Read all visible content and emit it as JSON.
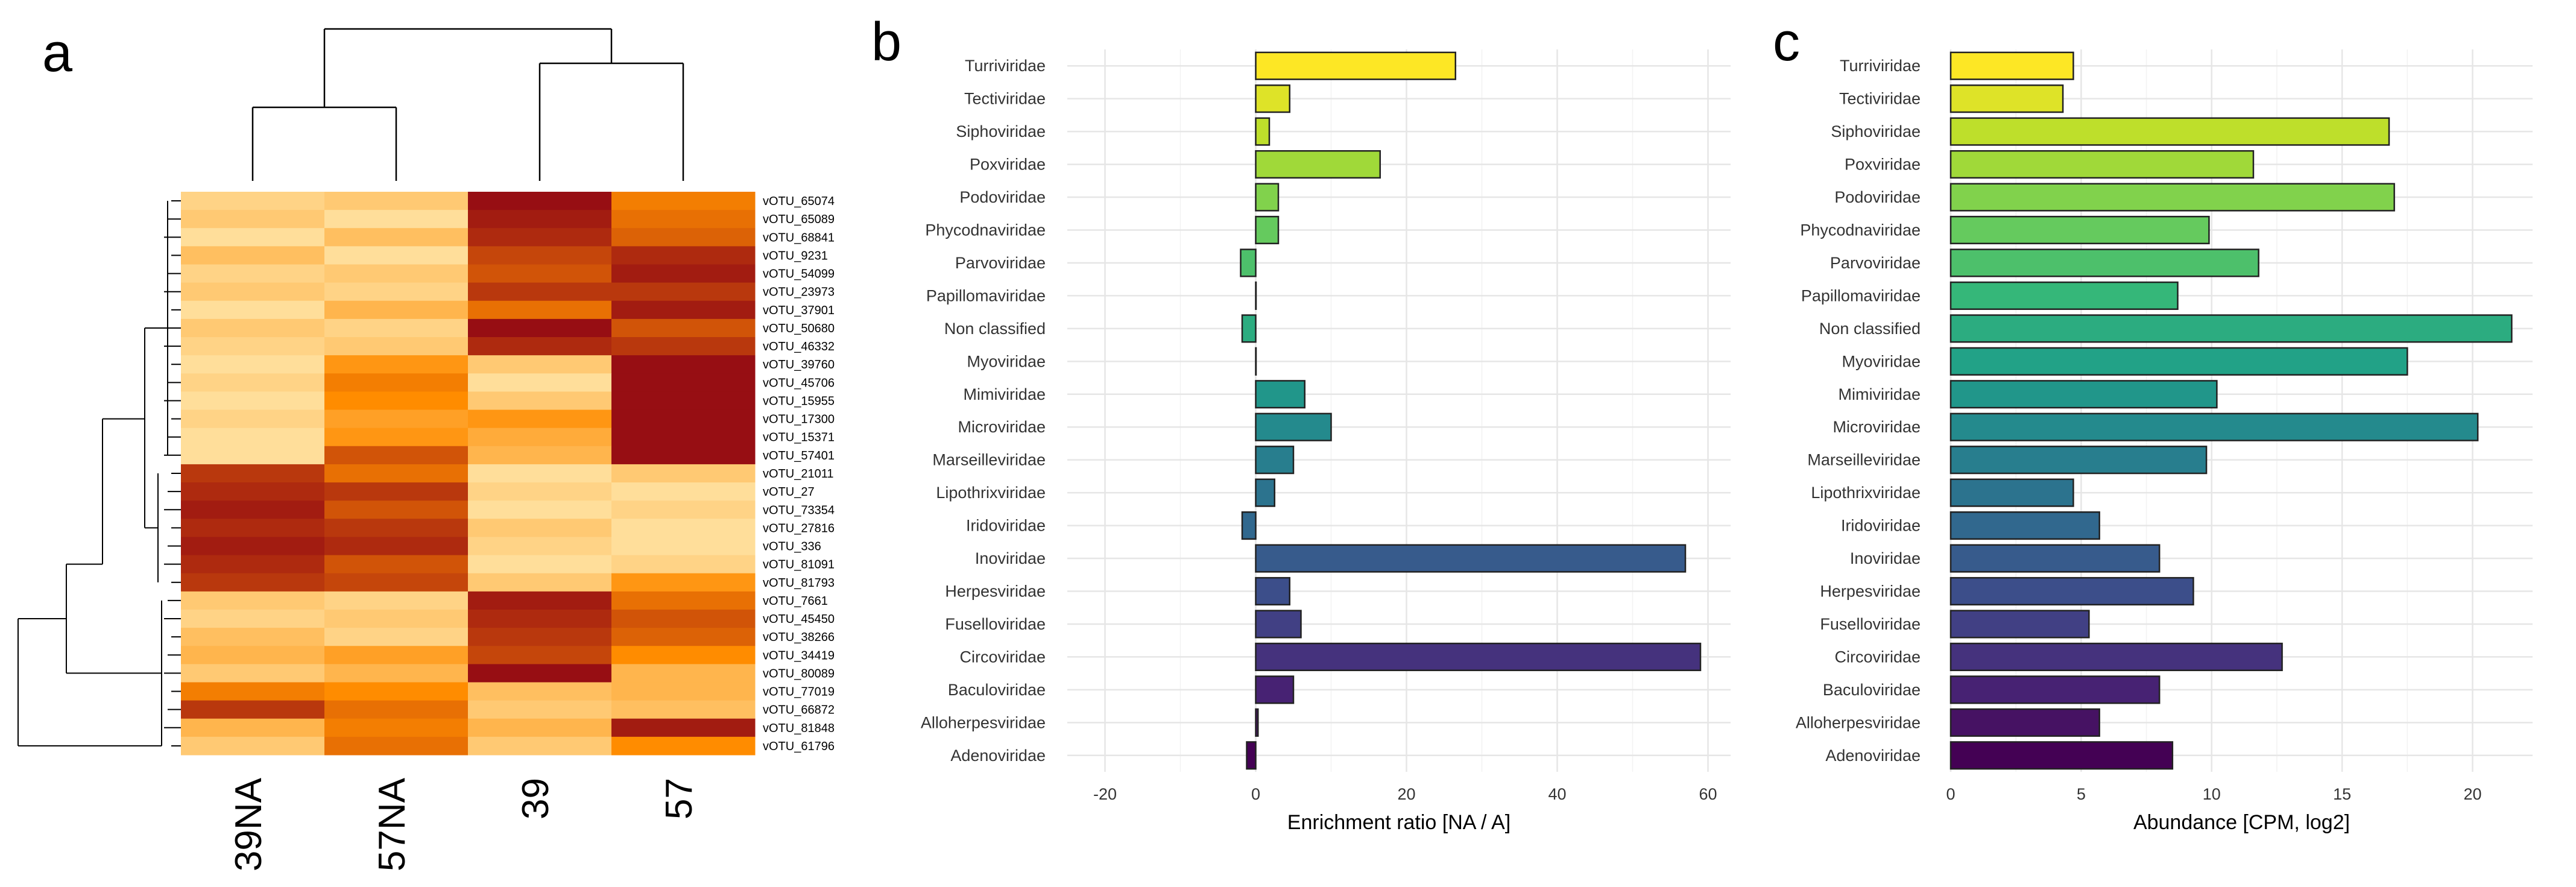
{
  "panel_labels": {
    "a": "a",
    "b": "b",
    "c": "c"
  },
  "colors": {
    "heat_low": "#FFF2C0",
    "heat_mid": "#FF8C00",
    "heat_high": "#8B0015"
  },
  "chart_data": [
    {
      "type": "heatmap",
      "panel": "a",
      "columns": [
        "39NA",
        "57NA",
        "39",
        "57"
      ],
      "row_labels": [
        "vOTU_65074",
        "vOTU_65089",
        "vOTU_68841",
        "vOTU_9231",
        "vOTU_54099",
        "vOTU_23973",
        "vOTU_37901",
        "vOTU_50680",
        "vOTU_46332",
        "vOTU_39760",
        "vOTU_45706",
        "vOTU_15955",
        "vOTU_17300",
        "vOTU_15371",
        "vOTU_57401",
        "vOTU_21011",
        "vOTU_27",
        "vOTU_73354",
        "vOTU_27816",
        "vOTU_336",
        "vOTU_81091",
        "vOTU_81793",
        "vOTU_7661",
        "vOTU_45450",
        "vOTU_38266",
        "vOTU_34419",
        "vOTU_80089",
        "vOTU_77019",
        "vOTU_66872",
        "vOTU_81848",
        "vOTU_61796"
      ],
      "value_scale": "0 (light yellow) to 1 (dark red)",
      "values": [
        [
          0.15,
          0.2,
          0.95,
          0.55
        ],
        [
          0.2,
          0.1,
          0.9,
          0.6
        ],
        [
          0.1,
          0.25,
          0.85,
          0.65
        ],
        [
          0.25,
          0.1,
          0.75,
          0.85
        ],
        [
          0.15,
          0.2,
          0.7,
          0.9
        ],
        [
          0.2,
          0.15,
          0.8,
          0.8
        ],
        [
          0.1,
          0.3,
          0.6,
          0.9
        ],
        [
          0.2,
          0.15,
          0.95,
          0.7
        ],
        [
          0.15,
          0.2,
          0.85,
          0.8
        ],
        [
          0.1,
          0.45,
          0.2,
          0.95
        ],
        [
          0.15,
          0.55,
          0.1,
          0.95
        ],
        [
          0.1,
          0.5,
          0.2,
          0.95
        ],
        [
          0.15,
          0.4,
          0.45,
          0.95
        ],
        [
          0.1,
          0.45,
          0.35,
          0.95
        ],
        [
          0.1,
          0.7,
          0.3,
          0.95
        ],
        [
          0.8,
          0.6,
          0.1,
          0.2
        ],
        [
          0.85,
          0.8,
          0.15,
          0.1
        ],
        [
          0.9,
          0.7,
          0.1,
          0.15
        ],
        [
          0.85,
          0.8,
          0.2,
          0.1
        ],
        [
          0.9,
          0.85,
          0.15,
          0.1
        ],
        [
          0.85,
          0.7,
          0.1,
          0.15
        ],
        [
          0.8,
          0.75,
          0.2,
          0.45
        ],
        [
          0.2,
          0.15,
          0.9,
          0.6
        ],
        [
          0.15,
          0.2,
          0.85,
          0.7
        ],
        [
          0.25,
          0.15,
          0.8,
          0.65
        ],
        [
          0.3,
          0.4,
          0.75,
          0.5
        ],
        [
          0.2,
          0.3,
          0.95,
          0.3
        ],
        [
          0.55,
          0.5,
          0.25,
          0.3
        ],
        [
          0.8,
          0.6,
          0.2,
          0.25
        ],
        [
          0.3,
          0.55,
          0.3,
          0.9
        ],
        [
          0.2,
          0.6,
          0.2,
          0.5
        ]
      ]
    },
    {
      "type": "bar",
      "panel": "b",
      "orientation": "horizontal",
      "categories": [
        "Adenoviridae",
        "Alloherpesviridae",
        "Baculoviridae",
        "Circoviridae",
        "Fuselloviridae",
        "Herpesviridae",
        "Inoviridae",
        "Iridoviridae",
        "Lipothrixviridae",
        "Marseilleviridae",
        "Microviridae",
        "Mimiviridae",
        "Myoviridae",
        "Non classified",
        "Papillomaviridae",
        "Parvoviridae",
        "Phycodnaviridae",
        "Podoviridae",
        "Poxviridae",
        "Siphoviridae",
        "Tectiviridae",
        "Turriviridae"
      ],
      "values": [
        -1.2,
        0.3,
        5,
        59,
        6,
        4.5,
        57,
        -1.8,
        2.5,
        5,
        10,
        6.5,
        0,
        -1.8,
        0,
        -2,
        3,
        3,
        16.5,
        1.8,
        4.5,
        26.5
      ],
      "xlabel": "Enrichment ratio [NA / A]",
      "ylabel": "",
      "xlim": [
        -25,
        63
      ],
      "ticks": [
        -20,
        0,
        20,
        40,
        60
      ],
      "tick_labels": [
        "-20",
        "0",
        "20",
        "40",
        "60"
      ],
      "grid": true
    },
    {
      "type": "bar",
      "panel": "c",
      "orientation": "horizontal",
      "categories": [
        "Adenoviridae",
        "Alloherpesviridae",
        "Baculoviridae",
        "Circoviridae",
        "Fuselloviridae",
        "Herpesviridae",
        "Inoviridae",
        "Iridoviridae",
        "Lipothrixviridae",
        "Marseilleviridae",
        "Microviridae",
        "Mimiviridae",
        "Myoviridae",
        "Non classified",
        "Papillomaviridae",
        "Parvoviridae",
        "Phycodnaviridae",
        "Podoviridae",
        "Poxviridae",
        "Siphoviridae",
        "Tectiviridae",
        "Turriviridae"
      ],
      "values": [
        8.5,
        5.7,
        8,
        12.7,
        5.3,
        9.3,
        8,
        5.7,
        4.7,
        9.8,
        20.2,
        10.2,
        17.5,
        21.5,
        8.7,
        11.8,
        9.9,
        17,
        11.6,
        16.8,
        4.3,
        4.7
      ],
      "xlabel": "Abundance [CPM, log2]",
      "ylabel": "",
      "xlim": [
        0,
        22.3
      ],
      "ticks": [
        0,
        5,
        10,
        15,
        20
      ],
      "tick_labels": [
        "0",
        "5",
        "10",
        "15",
        "20"
      ],
      "grid": true
    }
  ]
}
